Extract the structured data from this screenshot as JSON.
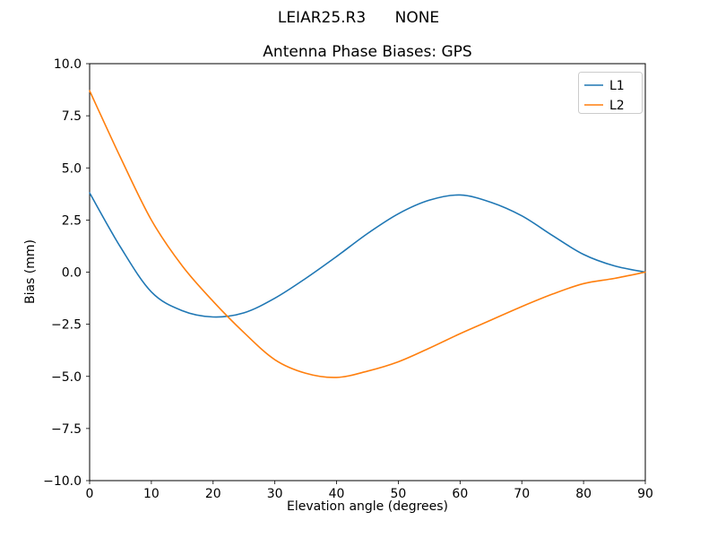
{
  "figure": {
    "suptitle": "LEIAR25.R3      NONE",
    "background_color": "#ffffff",
    "axes_edge_color": "#000000"
  },
  "chart_data": {
    "type": "line",
    "suptitle": "LEIAR25.R3      NONE",
    "title": "Antenna Phase Biases: GPS",
    "xlabel": "Elevation angle (degrees)",
    "ylabel": "Bias (mm)",
    "xlim": [
      0,
      90
    ],
    "ylim": [
      -10,
      10
    ],
    "grid": false,
    "x_ticks": [
      0,
      10,
      20,
      30,
      40,
      50,
      60,
      70,
      80,
      90
    ],
    "x_tick_labels": [
      "0",
      "10",
      "20",
      "30",
      "40",
      "50",
      "60",
      "70",
      "80",
      "90"
    ],
    "y_ticks": [
      -10,
      -7.5,
      -5,
      -2.5,
      0,
      2.5,
      5,
      7.5,
      10
    ],
    "y_tick_labels": [
      "−10.0",
      "−7.5",
      "−5.0",
      "−2.5",
      "0.0",
      "2.5",
      "5.0",
      "7.5",
      "10.0"
    ],
    "x": [
      0,
      5,
      10,
      15,
      20,
      25,
      30,
      35,
      40,
      45,
      50,
      55,
      60,
      65,
      70,
      75,
      80,
      85,
      90
    ],
    "series": [
      {
        "name": "L1",
        "color": "#1f77b4",
        "values": [
          3.8,
          1.2,
          -0.95,
          -1.85,
          -2.15,
          -1.95,
          -1.25,
          -0.3,
          0.75,
          1.85,
          2.8,
          3.45,
          3.7,
          3.35,
          2.7,
          1.75,
          0.85,
          0.3,
          0.0
        ]
      },
      {
        "name": "L2",
        "color": "#ff7f0e",
        "values": [
          8.7,
          5.5,
          2.5,
          0.3,
          -1.4,
          -2.9,
          -4.2,
          -4.85,
          -5.05,
          -4.75,
          -4.3,
          -3.65,
          -2.95,
          -2.3,
          -1.65,
          -1.05,
          -0.55,
          -0.3,
          0.0
        ]
      }
    ],
    "legend": {
      "position": "upper right",
      "entries": [
        "L1",
        "L2"
      ]
    }
  }
}
